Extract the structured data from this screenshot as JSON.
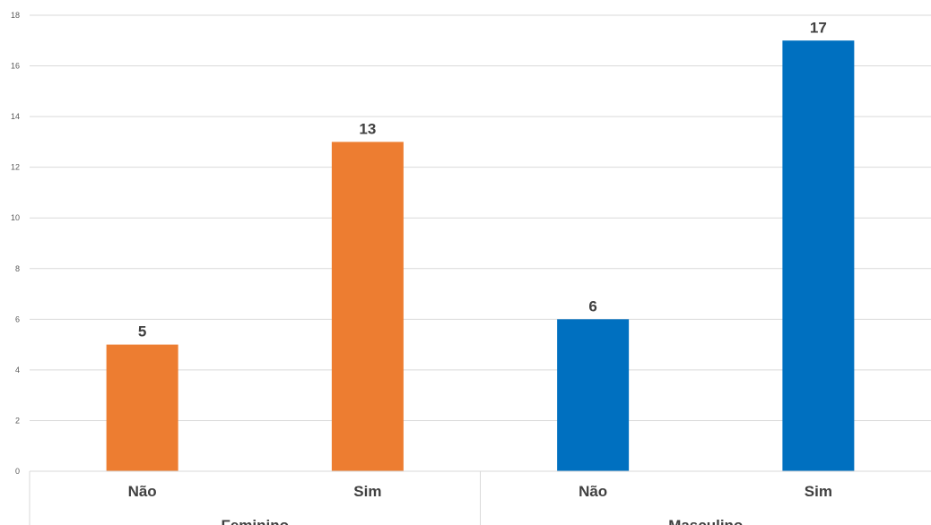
{
  "chart_data": {
    "type": "bar",
    "title": "",
    "xlabel": "",
    "ylabel": "",
    "ylim": [
      0,
      18
    ],
    "yticks": [
      0,
      2,
      4,
      6,
      8,
      10,
      12,
      14,
      16,
      18
    ],
    "grid": true,
    "legend": "none",
    "groups": [
      {
        "name": "Feminino",
        "color": "#ED7D31",
        "bars": [
          {
            "category": "Não",
            "value": 5
          },
          {
            "category": "Sim",
            "value": 13
          }
        ]
      },
      {
        "name": "Masculino",
        "color": "#0070C0",
        "bars": [
          {
            "category": "Não",
            "value": 6
          },
          {
            "category": "Sim",
            "value": 17
          }
        ]
      }
    ]
  }
}
